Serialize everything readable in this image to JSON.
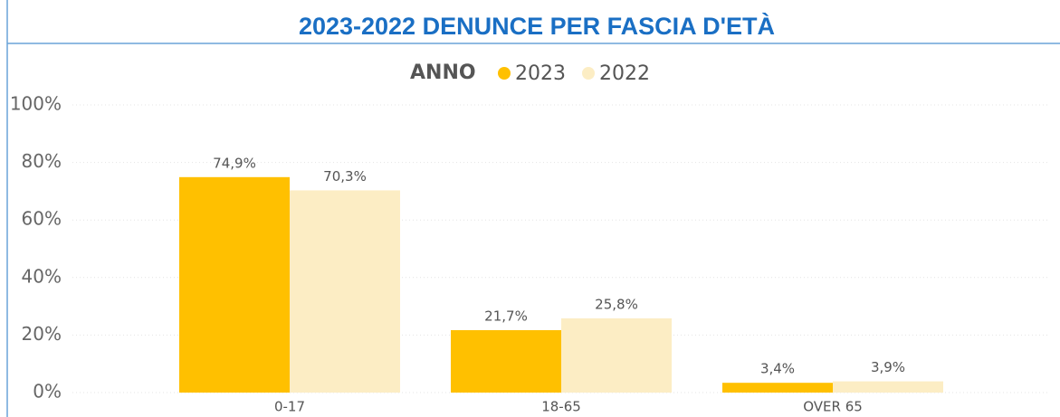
{
  "chart_data": {
    "type": "bar",
    "title": "2023-2022 DENUNCE PER FASCIA D'ETÀ",
    "legend_title": "ANNO",
    "categories": [
      "0-17",
      "18-65",
      "OVER 65"
    ],
    "series": [
      {
        "name": "2023",
        "color": "#ffc000",
        "values": [
          74.9,
          21.7,
          3.4
        ],
        "value_labels": [
          "74,9%",
          "21,7%",
          "3,4%"
        ]
      },
      {
        "name": "2022",
        "color": "#fcedc4",
        "values": [
          70.3,
          25.8,
          3.9
        ],
        "value_labels": [
          "70,3%",
          "25,8%",
          "3,9%"
        ]
      }
    ],
    "ylim": [
      0,
      100
    ],
    "yticks": [
      {
        "value": 0,
        "label": "0%"
      },
      {
        "value": 20,
        "label": "20%"
      },
      {
        "value": 40,
        "label": "40%"
      },
      {
        "value": 60,
        "label": "60%"
      },
      {
        "value": 80,
        "label": "80%"
      },
      {
        "value": 100,
        "label": "100%"
      }
    ],
    "grid": true,
    "legend": "top"
  }
}
